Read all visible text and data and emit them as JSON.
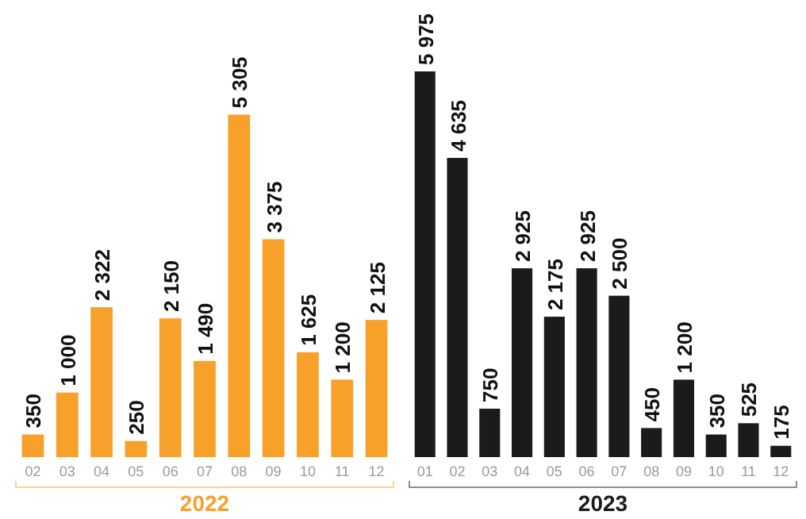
{
  "chart_data": [
    {
      "type": "bar",
      "xlabel": "2022",
      "categories": [
        "02",
        "03",
        "04",
        "05",
        "06",
        "07",
        "08",
        "09",
        "10",
        "11",
        "12"
      ],
      "series": [
        {
          "color": "#f7a12a",
          "values": [
            350,
            1000,
            2322,
            250,
            2150,
            1490,
            5305,
            3375,
            1625,
            1200,
            2125
          ],
          "value_labels": [
            "350",
            "1 000",
            "2 322",
            "250",
            "2 150",
            "1 490",
            "5 305",
            "3 375",
            "1 625",
            "1 200",
            "2 125"
          ]
        }
      ]
    },
    {
      "type": "bar",
      "xlabel": "2023",
      "categories": [
        "01",
        "02",
        "03",
        "04",
        "05",
        "06",
        "07",
        "08",
        "09",
        "10",
        "11",
        "12"
      ],
      "series": [
        {
          "color": "#1b1b1b",
          "values": [
            5975,
            4635,
            750,
            2925,
            2175,
            2925,
            2500,
            450,
            1200,
            350,
            525,
            175
          ],
          "value_labels": [
            "5 975",
            "4 635",
            "750",
            "2 925",
            "2 175",
            "2 925",
            "2 500",
            "450",
            "1 200",
            "350",
            "525",
            "175"
          ]
        }
      ]
    }
  ]
}
